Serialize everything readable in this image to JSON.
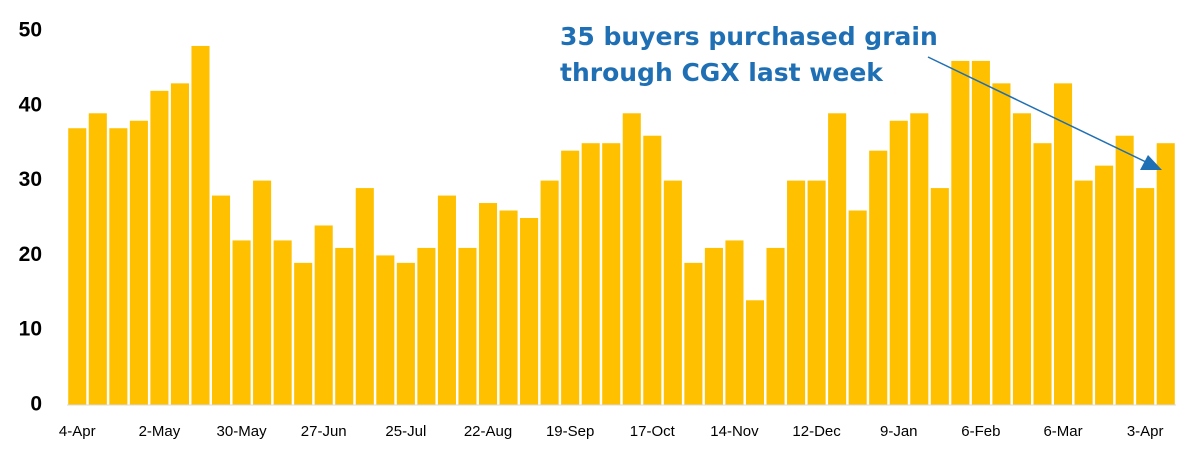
{
  "chart_data": {
    "type": "bar",
    "annotation": [
      "35 buyers purchased grain",
      "through CGX last week"
    ],
    "categories": [
      "4-Apr",
      null,
      null,
      null,
      "2-May",
      null,
      null,
      null,
      "30-May",
      null,
      null,
      null,
      "27-Jun",
      null,
      null,
      null,
      "25-Jul",
      null,
      null,
      null,
      "22-Aug",
      null,
      null,
      null,
      "19-Sep",
      null,
      null,
      null,
      "17-Oct",
      null,
      null,
      null,
      "14-Nov",
      null,
      null,
      null,
      "12-Dec",
      null,
      null,
      null,
      "9-Jan",
      null,
      null,
      null,
      "6-Feb",
      null,
      null,
      null,
      "6-Mar",
      null,
      null,
      null,
      "3-Apr",
      null
    ],
    "values": [
      37,
      39,
      37,
      38,
      42,
      43,
      48,
      28,
      22,
      30,
      22,
      19,
      24,
      21,
      29,
      20,
      19,
      21,
      28,
      21,
      27,
      26,
      25,
      30,
      34,
      35,
      35,
      39,
      36,
      30,
      19,
      21,
      22,
      14,
      21,
      30,
      30,
      39,
      26,
      34,
      38,
      39,
      29,
      46,
      46,
      43,
      39,
      35,
      43,
      30,
      32,
      36,
      29,
      35
    ],
    "color": "#ffc000",
    "ylim": [
      0,
      50
    ],
    "yticks": [
      0,
      10,
      20,
      30,
      40,
      50
    ],
    "grid": false
  }
}
